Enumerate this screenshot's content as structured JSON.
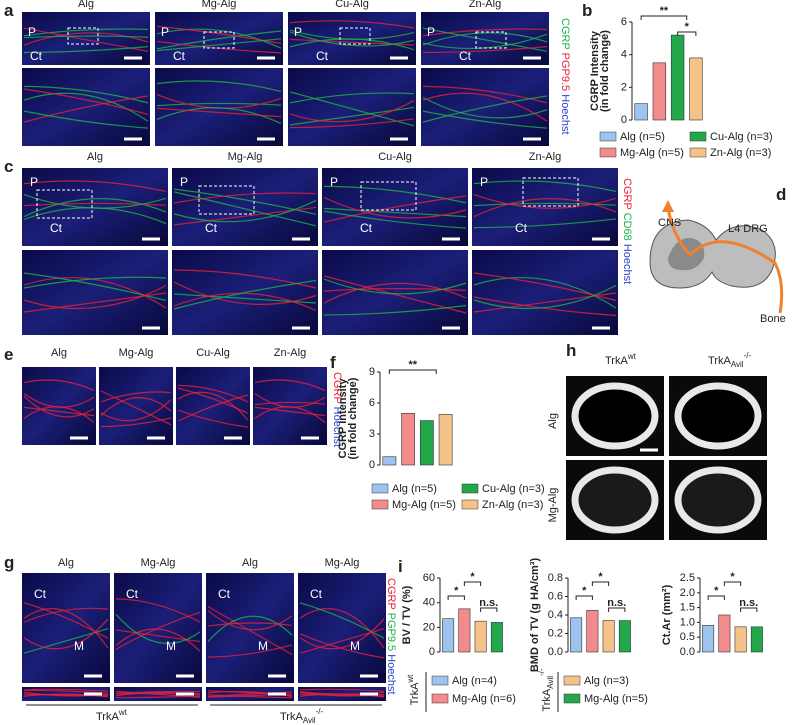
{
  "figure": {
    "a": {
      "label": "a",
      "columns": [
        "Alg",
        "Mg-Alg",
        "Cu-Alg",
        "Zn-Alg"
      ],
      "stains": [
        {
          "text": "CGRP",
          "color": "#1fb34a"
        },
        {
          "text": "PGP9.5",
          "color": "#e8203a"
        },
        {
          "text": "Hoechst",
          "color": "#2a3fd0"
        }
      ],
      "region_labels": [
        "P",
        "Ct"
      ]
    },
    "c": {
      "label": "c",
      "columns": [
        "Alg",
        "Mg-Alg",
        "Cu-Alg",
        "Zn-Alg"
      ],
      "stains": [
        {
          "text": "CGRP",
          "color": "#e8203a"
        },
        {
          "text": "CD68",
          "color": "#1fb34a"
        },
        {
          "text": "Hoechst",
          "color": "#2a3fd0"
        }
      ],
      "region_labels": [
        "P",
        "Ct"
      ]
    },
    "d": {
      "label": "d",
      "texts": [
        "CNS",
        "L4 DRG",
        "Bone"
      ]
    },
    "e": {
      "label": "e",
      "columns": [
        "Alg",
        "Mg-Alg",
        "Cu-Alg",
        "Zn-Alg"
      ],
      "stains": [
        {
          "text": "CGRP",
          "color": "#e8203a"
        },
        {
          "text": "Hoechst",
          "color": "#2a3fd0"
        }
      ]
    },
    "g": {
      "label": "g",
      "columns": [
        "Alg",
        "Mg-Alg",
        "Alg",
        "Mg-Alg"
      ],
      "stains": [
        {
          "text": "CGRP",
          "color": "#e8203a"
        },
        {
          "text": "PGP9.5",
          "color": "#1fb34a"
        },
        {
          "text": "Hoechst",
          "color": "#2a3fd0"
        }
      ],
      "region_labels": [
        "Ct",
        "M"
      ],
      "groups": [
        {
          "base": "TrkA",
          "sup": "wt"
        },
        {
          "base": "TrkA",
          "sub": "Avil",
          "sup": "-/-"
        }
      ]
    },
    "h": {
      "label": "h",
      "columns": [
        {
          "base": "TrkA",
          "sup": "wt"
        },
        {
          "base": "TrkA",
          "sub": "Avil",
          "sup": "-/-"
        }
      ],
      "rows": [
        "Alg",
        "Mg-Alg"
      ]
    },
    "i": {
      "label": "i",
      "groups": [
        {
          "title": {
            "base": "TrkA",
            "sup": "wt"
          },
          "items": [
            {
              "name": "Alg (n=4)",
              "color": "#9dc3ef"
            },
            {
              "name": "Mg-Alg (n=6)",
              "color": "#f28b8b"
            }
          ]
        },
        {
          "title": {
            "base": "TrkA",
            "sub": "Avil",
            "sup": "-/-"
          },
          "items": [
            {
              "name": "Alg (n=3)",
              "color": "#f5c38a"
            },
            {
              "name": "Mg-Alg (n=5)",
              "color": "#22a84a"
            }
          ]
        }
      ]
    }
  },
  "chart_data": [
    {
      "type": "bar",
      "panel": "b",
      "ylabel": [
        "CGRP Intensity",
        "(in fold change)"
      ],
      "series": [
        {
          "name": "Alg (n=5)",
          "color": "#9dc3ef",
          "values": [
            1.0
          ]
        },
        {
          "name": "Mg-Alg (n=5)",
          "color": "#f28b8b",
          "values": [
            3.5
          ]
        },
        {
          "name": "Cu-Alg (n=3)",
          "color": "#22a84a",
          "values": [
            5.2
          ]
        },
        {
          "name": "Zn-Alg (n=3)",
          "color": "#f5c38a",
          "values": [
            3.8
          ]
        }
      ],
      "ylim": [
        0,
        6
      ],
      "yticks": [
        0,
        2,
        4,
        6
      ],
      "annotations": [
        "**",
        "*"
      ]
    },
    {
      "type": "bar",
      "panel": "f",
      "ylabel": [
        "CGRP Intensity",
        "(in fold change)"
      ],
      "series": [
        {
          "name": "Alg (n=5)",
          "color": "#9dc3ef",
          "values": [
            0.8
          ]
        },
        {
          "name": "Mg-Alg (n=5)",
          "color": "#f28b8b",
          "values": [
            5.0
          ]
        },
        {
          "name": "Cu-Alg (n=3)",
          "color": "#22a84a",
          "values": [
            4.3
          ]
        },
        {
          "name": "Zn-Alg (n=3)",
          "color": "#f5c38a",
          "values": [
            4.9
          ]
        }
      ],
      "ylim": [
        0,
        9
      ],
      "yticks": [
        0,
        3,
        6,
        9
      ],
      "annotations": [
        "**"
      ]
    },
    {
      "type": "bar",
      "ylabel": [
        "BV / TV (%)"
      ],
      "series": [
        {
          "color": "#9dc3ef",
          "values": [
            27
          ]
        },
        {
          "color": "#f28b8b",
          "values": [
            35
          ]
        },
        {
          "color": "#f5c38a",
          "values": [
            25
          ]
        },
        {
          "color": "#22a84a",
          "values": [
            24
          ]
        }
      ],
      "ylim": [
        0,
        60
      ],
      "yticks": [
        0,
        20,
        40,
        60
      ],
      "annotations": [
        "*",
        "*",
        "n.s."
      ]
    },
    {
      "type": "bar",
      "ylabel": [
        "BMD of TV (g HA/cm³)"
      ],
      "series": [
        {
          "color": "#9dc3ef",
          "values": [
            0.37
          ]
        },
        {
          "color": "#f28b8b",
          "values": [
            0.45
          ]
        },
        {
          "color": "#f5c38a",
          "values": [
            0.34
          ]
        },
        {
          "color": "#22a84a",
          "values": [
            0.34
          ]
        }
      ],
      "ylim": [
        0,
        0.8
      ],
      "yticks": [
        {
          "value": 0,
          "label": "0.0"
        },
        0.2,
        0.4,
        0.6,
        0.8
      ],
      "annotations": [
        "*",
        "*",
        "n.s."
      ]
    },
    {
      "type": "bar",
      "ylabel": [
        "Ct.Ar (mm²)"
      ],
      "series": [
        {
          "color": "#9dc3ef",
          "values": [
            0.9
          ]
        },
        {
          "color": "#f28b8b",
          "values": [
            1.25
          ]
        },
        {
          "color": "#f5c38a",
          "values": [
            0.85
          ]
        },
        {
          "color": "#22a84a",
          "values": [
            0.85
          ]
        }
      ],
      "ylim": [
        0,
        2.5
      ],
      "yticks": [
        {
          "value": 0,
          "label": "0.0"
        },
        0.5,
        {
          "value": 1,
          "label": "1.0"
        },
        1.5,
        {
          "value": 2,
          "label": "2.0"
        },
        2.5
      ],
      "annotations": [
        "*",
        "*",
        "n.s."
      ]
    }
  ]
}
